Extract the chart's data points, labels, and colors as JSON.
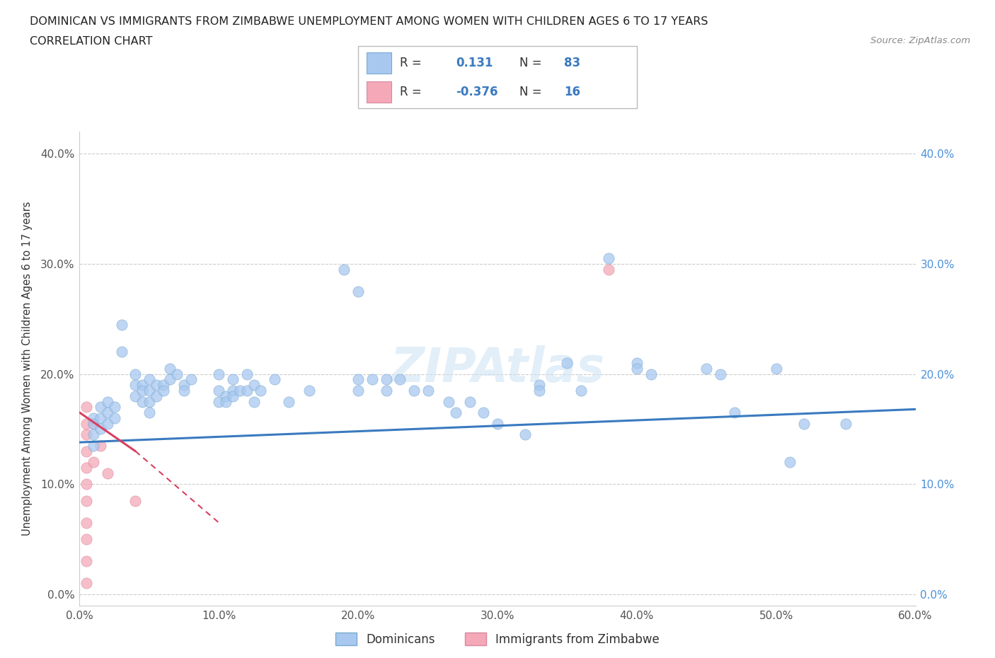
{
  "title_line1": "DOMINICAN VS IMMIGRANTS FROM ZIMBABWE UNEMPLOYMENT AMONG WOMEN WITH CHILDREN AGES 6 TO 17 YEARS",
  "title_line2": "CORRELATION CHART",
  "source": "Source: ZipAtlas.com",
  "ylabel": "Unemployment Among Women with Children Ages 6 to 17 years",
  "xlim": [
    0.0,
    0.6
  ],
  "ylim": [
    -0.01,
    0.42
  ],
  "yticks": [
    0.0,
    0.1,
    0.2,
    0.3,
    0.4
  ],
  "ytick_labels": [
    "0.0%",
    "10.0%",
    "20.0%",
    "30.0%",
    "40.0%"
  ],
  "xticks": [
    0.0,
    0.1,
    0.2,
    0.3,
    0.4,
    0.5,
    0.6
  ],
  "xtick_labels": [
    "0.0%",
    "10.0%",
    "20.0%",
    "30.0%",
    "40.0%",
    "50.0%",
    "60.0%"
  ],
  "dominican_color": "#a8c8f0",
  "dominican_edge_color": "#7aaad0",
  "zimbabwe_color": "#f4a8b8",
  "zimbabwe_edge_color": "#d888a0",
  "dominican_line_color": "#3a7abf",
  "zimbabwe_line_color": "#d94060",
  "dominican_scatter": [
    [
      0.01,
      0.16
    ],
    [
      0.01,
      0.155
    ],
    [
      0.01,
      0.145
    ],
    [
      0.01,
      0.135
    ],
    [
      0.015,
      0.17
    ],
    [
      0.015,
      0.16
    ],
    [
      0.015,
      0.15
    ],
    [
      0.02,
      0.175
    ],
    [
      0.02,
      0.165
    ],
    [
      0.02,
      0.155
    ],
    [
      0.025,
      0.17
    ],
    [
      0.025,
      0.16
    ],
    [
      0.03,
      0.22
    ],
    [
      0.04,
      0.2
    ],
    [
      0.04,
      0.19
    ],
    [
      0.04,
      0.18
    ],
    [
      0.045,
      0.19
    ],
    [
      0.045,
      0.185
    ],
    [
      0.045,
      0.175
    ],
    [
      0.05,
      0.195
    ],
    [
      0.05,
      0.185
    ],
    [
      0.05,
      0.175
    ],
    [
      0.05,
      0.165
    ],
    [
      0.055,
      0.19
    ],
    [
      0.055,
      0.18
    ],
    [
      0.06,
      0.19
    ],
    [
      0.06,
      0.185
    ],
    [
      0.065,
      0.205
    ],
    [
      0.065,
      0.195
    ],
    [
      0.07,
      0.2
    ],
    [
      0.075,
      0.19
    ],
    [
      0.075,
      0.185
    ],
    [
      0.08,
      0.195
    ],
    [
      0.03,
      0.245
    ],
    [
      0.1,
      0.2
    ],
    [
      0.1,
      0.185
    ],
    [
      0.1,
      0.175
    ],
    [
      0.105,
      0.18
    ],
    [
      0.105,
      0.175
    ],
    [
      0.11,
      0.195
    ],
    [
      0.11,
      0.185
    ],
    [
      0.11,
      0.18
    ],
    [
      0.115,
      0.185
    ],
    [
      0.12,
      0.2
    ],
    [
      0.12,
      0.185
    ],
    [
      0.125,
      0.19
    ],
    [
      0.125,
      0.175
    ],
    [
      0.13,
      0.185
    ],
    [
      0.14,
      0.195
    ],
    [
      0.15,
      0.175
    ],
    [
      0.165,
      0.185
    ],
    [
      0.19,
      0.295
    ],
    [
      0.2,
      0.275
    ],
    [
      0.2,
      0.195
    ],
    [
      0.2,
      0.185
    ],
    [
      0.21,
      0.195
    ],
    [
      0.22,
      0.195
    ],
    [
      0.22,
      0.185
    ],
    [
      0.23,
      0.195
    ],
    [
      0.24,
      0.185
    ],
    [
      0.25,
      0.185
    ],
    [
      0.265,
      0.175
    ],
    [
      0.27,
      0.165
    ],
    [
      0.28,
      0.175
    ],
    [
      0.29,
      0.165
    ],
    [
      0.3,
      0.155
    ],
    [
      0.32,
      0.145
    ],
    [
      0.33,
      0.19
    ],
    [
      0.33,
      0.185
    ],
    [
      0.35,
      0.21
    ],
    [
      0.36,
      0.185
    ],
    [
      0.38,
      0.305
    ],
    [
      0.4,
      0.21
    ],
    [
      0.4,
      0.205
    ],
    [
      0.41,
      0.2
    ],
    [
      0.45,
      0.205
    ],
    [
      0.46,
      0.2
    ],
    [
      0.47,
      0.165
    ],
    [
      0.5,
      0.205
    ],
    [
      0.51,
      0.12
    ],
    [
      0.52,
      0.155
    ],
    [
      0.55,
      0.155
    ]
  ],
  "zimbabwe_scatter": [
    [
      0.005,
      0.17
    ],
    [
      0.005,
      0.155
    ],
    [
      0.005,
      0.145
    ],
    [
      0.005,
      0.13
    ],
    [
      0.005,
      0.115
    ],
    [
      0.005,
      0.1
    ],
    [
      0.005,
      0.085
    ],
    [
      0.005,
      0.065
    ],
    [
      0.005,
      0.05
    ],
    [
      0.005,
      0.03
    ],
    [
      0.005,
      0.01
    ],
    [
      0.01,
      0.155
    ],
    [
      0.01,
      0.12
    ],
    [
      0.015,
      0.135
    ],
    [
      0.02,
      0.11
    ],
    [
      0.04,
      0.085
    ],
    [
      0.38,
      0.295
    ]
  ],
  "dominican_trendline": [
    [
      0.0,
      0.138
    ],
    [
      0.6,
      0.168
    ]
  ],
  "zimbabwe_trendline_solid": [
    [
      0.0,
      0.165
    ],
    [
      0.04,
      0.13
    ]
  ],
  "zimbabwe_trendline_dashed": [
    [
      0.04,
      0.13
    ],
    [
      0.1,
      0.065
    ]
  ]
}
